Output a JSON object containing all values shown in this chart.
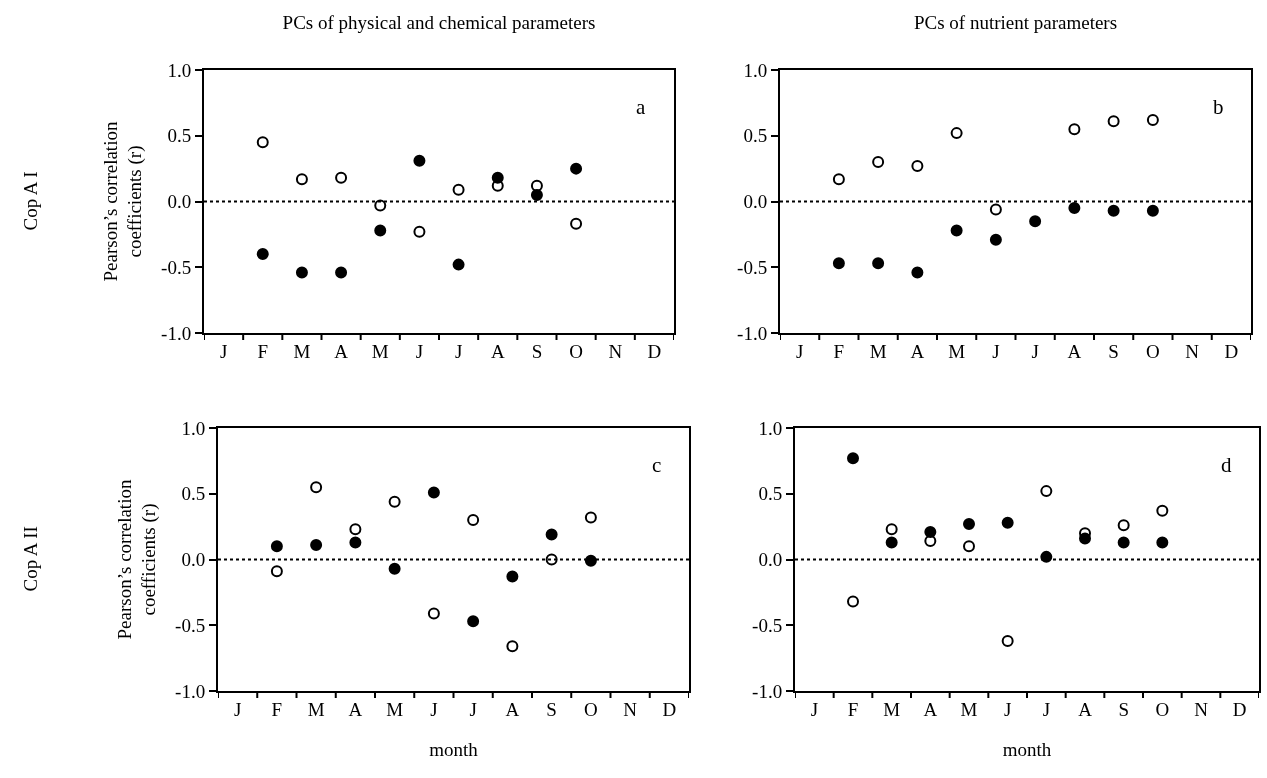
{
  "chart_data": [
    {
      "type": "scatter",
      "title": "PCs of physical and chemical parameters",
      "ylabel": "Pearson’s correlation coefficients (r)",
      "annotations": [
        "a",
        "Cop A I"
      ],
      "categories": [
        "J",
        "F",
        "M",
        "A",
        "M",
        "J",
        "J",
        "A",
        "S",
        "O",
        "N",
        "D"
      ],
      "series": [
        {
          "color": "#ffffff",
          "values": [
            null,
            0.45,
            0.17,
            0.18,
            -0.03,
            -0.23,
            0.09,
            0.12,
            0.12,
            -0.17,
            null,
            null
          ]
        },
        {
          "color": "#000000",
          "values": [
            null,
            -0.4,
            -0.54,
            -0.54,
            -0.22,
            0.31,
            -0.48,
            0.18,
            0.05,
            0.25,
            null,
            null
          ]
        }
      ],
      "ylim": [
        -1,
        1
      ],
      "yticks": [
        {
          "value": -1,
          "label": "-1.0"
        },
        {
          "value": -0.5,
          "label": "-0.5"
        },
        {
          "value": 0,
          "label": "0.0"
        },
        {
          "value": 0.5,
          "label": "0.5"
        },
        {
          "value": 1,
          "label": "1.0"
        }
      ],
      "ref_lines": [
        {
          "axis": "y",
          "value": 0,
          "color": "#000000",
          "line_style": "dotted"
        }
      ],
      "marker": "circle",
      "grid": false
    },
    {
      "type": "scatter",
      "title": "PCs of nutrient parameters",
      "annotations": [
        "b"
      ],
      "categories": [
        "J",
        "F",
        "M",
        "A",
        "M",
        "J",
        "J",
        "A",
        "S",
        "O",
        "N",
        "D"
      ],
      "series": [
        {
          "color": "#ffffff",
          "values": [
            null,
            0.17,
            0.3,
            0.27,
            0.52,
            -0.06,
            null,
            0.55,
            0.61,
            0.62,
            null,
            null
          ]
        },
        {
          "color": "#000000",
          "values": [
            null,
            -0.47,
            -0.47,
            -0.54,
            -0.22,
            -0.29,
            -0.15,
            -0.05,
            -0.07,
            -0.07,
            null,
            null
          ]
        }
      ],
      "ylim": [
        -1,
        1
      ],
      "yticks": [
        {
          "value": -1,
          "label": "-1.0"
        },
        {
          "value": -0.5,
          "label": "-0.5"
        },
        {
          "value": 0,
          "label": "0.0"
        },
        {
          "value": 0.5,
          "label": "0.5"
        },
        {
          "value": 1,
          "label": "1.0"
        }
      ],
      "ref_lines": [
        {
          "axis": "y",
          "value": 0,
          "color": "#000000",
          "line_style": "dotted"
        }
      ],
      "marker": "circle",
      "grid": false
    },
    {
      "type": "scatter",
      "xlabel": "month",
      "ylabel": "Pearson’s correlation coefficients (r)",
      "annotations": [
        "c",
        "Cop A II"
      ],
      "categories": [
        "J",
        "F",
        "M",
        "A",
        "M",
        "J",
        "J",
        "A",
        "S",
        "O",
        "N",
        "D"
      ],
      "series": [
        {
          "color": "#ffffff",
          "values": [
            null,
            -0.09,
            0.55,
            0.23,
            0.44,
            -0.41,
            0.3,
            -0.66,
            0.0,
            0.32,
            null,
            null
          ]
        },
        {
          "color": "#000000",
          "values": [
            null,
            0.1,
            0.11,
            0.13,
            -0.07,
            0.51,
            -0.47,
            -0.13,
            0.19,
            -0.01,
            null,
            null
          ]
        }
      ],
      "ylim": [
        -1,
        1
      ],
      "yticks": [
        {
          "value": -1,
          "label": "-1.0"
        },
        {
          "value": -0.5,
          "label": "-0.5"
        },
        {
          "value": 0,
          "label": "0.0"
        },
        {
          "value": 0.5,
          "label": "0.5"
        },
        {
          "value": 1,
          "label": "1.0"
        }
      ],
      "ref_lines": [
        {
          "axis": "y",
          "value": 0,
          "color": "#000000",
          "line_style": "dotted"
        }
      ],
      "marker": "circle",
      "grid": false
    },
    {
      "type": "scatter",
      "xlabel": "month",
      "annotations": [
        "d"
      ],
      "categories": [
        "J",
        "F",
        "M",
        "A",
        "M",
        "J",
        "J",
        "A",
        "S",
        "O",
        "N",
        "D"
      ],
      "series": [
        {
          "color": "#ffffff",
          "values": [
            null,
            -0.32,
            0.23,
            0.14,
            0.1,
            -0.62,
            0.52,
            0.2,
            0.26,
            0.37,
            null,
            null
          ]
        },
        {
          "color": "#000000",
          "values": [
            null,
            0.77,
            0.13,
            0.21,
            0.27,
            0.28,
            0.02,
            0.16,
            0.13,
            0.13,
            null,
            null
          ]
        }
      ],
      "ylim": [
        -1,
        1
      ],
      "yticks": [
        {
          "value": -1,
          "label": "-1.0"
        },
        {
          "value": -0.5,
          "label": "-0.5"
        },
        {
          "value": 0,
          "label": "0.0"
        },
        {
          "value": 0.5,
          "label": "0.5"
        },
        {
          "value": 1,
          "label": "1.0"
        }
      ],
      "ref_lines": [
        {
          "axis": "y",
          "value": 0,
          "color": "#000000",
          "line_style": "dotted"
        }
      ],
      "marker": "circle",
      "grid": false
    }
  ]
}
